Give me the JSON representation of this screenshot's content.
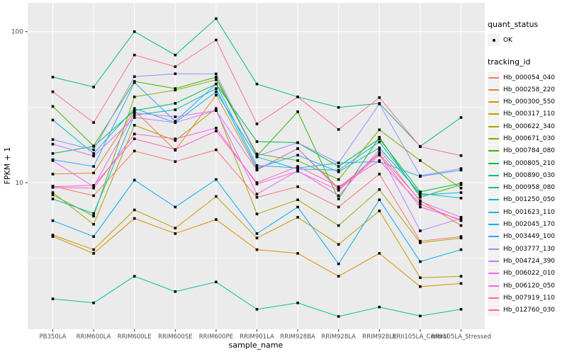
{
  "figure": {
    "panel_bg": "#EBEBEB",
    "grid_color": "#FFFFFF",
    "tick_label_color": "#4D4D4D",
    "axis_title_color": "#000000",
    "marker_color": "#000000",
    "legend_key_bg": "#F2F2F2"
  },
  "axes": {
    "x": {
      "title": "sample_name",
      "categories": [
        "PB350LA",
        "RRIM600LA",
        "RRIM600LE",
        "RRIM600SE",
        "RRIM600PE",
        "RRIM901LA",
        "RRIM928BA",
        "RRIM928LA",
        "RRIM928LE",
        "RRII105LA_Control",
        "RRII105LA_Stressed"
      ]
    },
    "y": {
      "title": "FPKM + 1",
      "scale": "log10",
      "tick_labels": [
        "100",
        "10"
      ],
      "tick_values": [
        100,
        10
      ],
      "minor_tick_values": [
        31.62,
        3.162
      ]
    }
  },
  "legend": {
    "quant_status": {
      "title": "quant_status",
      "items": [
        {
          "label": "OK",
          "marker": "black-point"
        }
      ]
    },
    "tracking_id": {
      "title": "tracking_id",
      "items": [
        {
          "label": "Hb_000054_040",
          "color": "#F8766D"
        },
        {
          "label": "Hb_000258_220",
          "color": "#EA8331"
        },
        {
          "label": "Hb_000300_550",
          "color": "#D89000"
        },
        {
          "label": "Hb_000317_110",
          "color": "#C09B00"
        },
        {
          "label": "Hb_000622_340",
          "color": "#A3A500"
        },
        {
          "label": "Hb_000671_030",
          "color": "#7CAE00"
        },
        {
          "label": "Hb_000784_080",
          "color": "#39B600"
        },
        {
          "label": "Hb_000805_210",
          "color": "#00BB4E"
        },
        {
          "label": "Hb_000890_030",
          "color": "#00BF7D"
        },
        {
          "label": "Hb_000958_080",
          "color": "#00C1A3"
        },
        {
          "label": "Hb_001250_050",
          "color": "#00BFC4"
        },
        {
          "label": "Hb_001623_110",
          "color": "#00BAE0"
        },
        {
          "label": "Hb_002045_170",
          "color": "#00B0F6"
        },
        {
          "label": "Hb_003449_100",
          "color": "#35A2FF"
        },
        {
          "label": "Hb_003777_130",
          "color": "#9590FF"
        },
        {
          "label": "Hb_004724_390",
          "color": "#C77CFF"
        },
        {
          "label": "Hb_006022_010",
          "color": "#E76BF3"
        },
        {
          "label": "Hb_006120_050",
          "color": "#FA62DB"
        },
        {
          "label": "Hb_007919_110",
          "color": "#FF61C3"
        },
        {
          "label": "Hb_012760_030",
          "color": "#FF6A98"
        }
      ]
    }
  },
  "chart_data": {
    "type": "line",
    "title": "",
    "xlabel": "sample_name",
    "ylabel": "FPKM + 1",
    "y_scale": "log10",
    "ylim": [
      1.08,
      152
    ],
    "grid": "major-and-minor-horizontal, major-vertical-per-category",
    "legend_position": "right",
    "point_marker": "small black square (quant_status OK)",
    "categories": [
      "PB350LA",
      "RRIM600LA",
      "RRIM600LE",
      "RRIM600SE",
      "RRIM600PE",
      "RRIM901LA",
      "RRIM928BA",
      "RRIM928LA",
      "RRIM928LE",
      "RRII105LA_Control",
      "RRII105LA_Stressed"
    ],
    "series": [
      {
        "name": "Hb_000054_040",
        "color": "#F8766D",
        "values": [
          9.5,
          8.2,
          16.2,
          13.8,
          16.5,
          8.0,
          9.4,
          6.9,
          11.4,
          4.1,
          4.4
        ]
      },
      {
        "name": "Hb_000258_220",
        "color": "#EA8331",
        "values": [
          11.4,
          11.6,
          30.0,
          16.4,
          38.0,
          12.2,
          16.8,
          9.2,
          15.5,
          7.6,
          5.2
        ]
      },
      {
        "name": "Hb_000300_550",
        "color": "#D89000",
        "values": [
          4.4,
          3.4,
          5.8,
          4.6,
          5.7,
          3.6,
          3.4,
          2.4,
          3.4,
          2.05,
          2.15
        ]
      },
      {
        "name": "Hb_000317_110",
        "color": "#C09B00",
        "values": [
          4.5,
          3.6,
          6.6,
          5.0,
          8.1,
          4.3,
          5.9,
          3.9,
          6.5,
          2.35,
          2.4
        ]
      },
      {
        "name": "Hb_000622_340",
        "color": "#A3A500",
        "values": [
          8.6,
          5.3,
          24.0,
          19.0,
          31.0,
          6.2,
          7.7,
          5.2,
          9.0,
          4.0,
          4.3
        ]
      },
      {
        "name": "Hb_000671_030",
        "color": "#7CAE00",
        "values": [
          8.3,
          6.0,
          37.0,
          41.0,
          48.0,
          15.5,
          14.0,
          10.5,
          22.4,
          14.0,
          9.2
        ]
      },
      {
        "name": "Hb_000784_080",
        "color": "#39B600",
        "values": [
          32.0,
          17.5,
          46.8,
          42.0,
          50.0,
          15.0,
          29.5,
          7.8,
          20.0,
          8.0,
          9.7
        ]
      },
      {
        "name": "Hb_000805_210",
        "color": "#00BB4E",
        "values": [
          15.6,
          17.4,
          30.0,
          33.5,
          45.0,
          18.7,
          18.4,
          12.8,
          19.5,
          8.7,
          9.9
        ]
      },
      {
        "name": "Hb_000890_030",
        "color": "#00BF7D",
        "values": [
          50.0,
          43.0,
          100.0,
          70.0,
          122.0,
          45.0,
          37.0,
          31.5,
          33.5,
          17.4,
          27.0
        ]
      },
      {
        "name": "Hb_000958_080",
        "color": "#00C1A3",
        "values": [
          1.7,
          1.6,
          2.4,
          1.9,
          2.2,
          1.45,
          1.6,
          1.3,
          1.5,
          1.31,
          1.45
        ]
      },
      {
        "name": "Hb_001250_050",
        "color": "#00BFC4",
        "values": [
          7.8,
          6.25,
          28.0,
          30.4,
          42.0,
          12.5,
          15.2,
          11.8,
          17.0,
          8.5,
          7.9
        ]
      },
      {
        "name": "Hb_001623_110",
        "color": "#00BAE0",
        "values": [
          26.0,
          15.6,
          31.0,
          25.0,
          40.0,
          14.8,
          12.3,
          12.1,
          18.6,
          8.3,
          8.6
        ]
      },
      {
        "name": "Hb_002045_170",
        "color": "#00B0F6",
        "values": [
          5.6,
          4.4,
          10.4,
          6.9,
          10.5,
          4.6,
          6.9,
          2.9,
          7.7,
          3.0,
          3.6
        ]
      },
      {
        "name": "Hb_003449_100",
        "color": "#35A2FF",
        "values": [
          14.2,
          12.8,
          46.0,
          25.5,
          45.0,
          13.0,
          12.5,
          13.5,
          13.8,
          11.0,
          12.1
        ]
      },
      {
        "name": "Hb_003777_130",
        "color": "#9590FF",
        "values": [
          19.3,
          16.5,
          50.4,
          52.6,
          52.5,
          15.0,
          18.4,
          13.5,
          33.2,
          11.1,
          12.4
        ]
      },
      {
        "name": "Hb_004724_390",
        "color": "#C77CFF",
        "values": [
          18.0,
          15.0,
          27.0,
          25.0,
          30.0,
          12.1,
          16.8,
          9.0,
          15.8,
          4.8,
          5.8
        ]
      },
      {
        "name": "Hb_006022_010",
        "color": "#E76BF3",
        "values": [
          14.0,
          9.4,
          29.0,
          27.3,
          30.0,
          8.4,
          12.0,
          8.2,
          16.5,
          7.5,
          5.9
        ]
      },
      {
        "name": "Hb_006120_050",
        "color": "#FA62DB",
        "values": [
          9.3,
          9.2,
          21.0,
          19.5,
          23.0,
          9.8,
          11.9,
          8.9,
          15.2,
          6.9,
          5.7
        ]
      },
      {
        "name": "Hb_007919_110",
        "color": "#FF61C3",
        "values": [
          9.4,
          9.6,
          19.5,
          16.6,
          22.0,
          10.0,
          12.8,
          9.4,
          14.0,
          7.2,
          5.6
        ]
      },
      {
        "name": "Hb_012760_030",
        "color": "#FF6A98",
        "values": [
          40.0,
          25.0,
          70.0,
          58.6,
          88.0,
          24.5,
          37.0,
          22.5,
          36.6,
          17.3,
          15.1
        ]
      }
    ]
  }
}
